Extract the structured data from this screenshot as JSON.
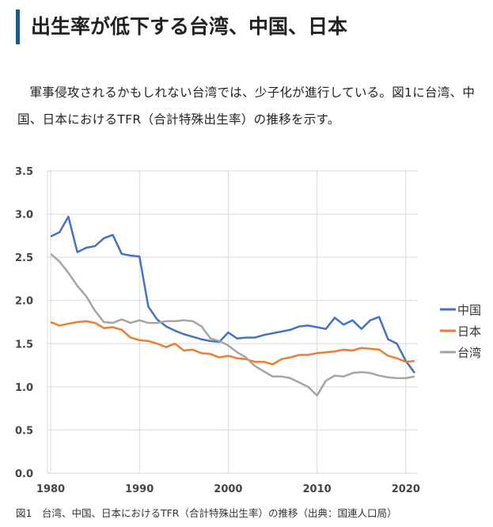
{
  "heading": "出生率が低下する台湾、中国、日本",
  "paragraph": "軍事侵攻されるかもしれない台湾では、少子化が進行している。図1に台湾、中国、日本におけるTFR（合計特殊出生率）の推移を示す。",
  "caption": "図1　台湾、中国、日本におけるTFR（合計特殊出生率）の推移（出典：国連人口局）",
  "chart_data": {
    "type": "line",
    "title": "",
    "xlabel": "",
    "ylabel": "",
    "xlim": [
      1980,
      2021
    ],
    "ylim": [
      0,
      3.5
    ],
    "grid": true,
    "legend": "right",
    "x_ticks": [
      "1980",
      "1990",
      "2000",
      "2010",
      "2020"
    ],
    "y_ticks": [
      "0.0",
      "0.5",
      "1.0",
      "1.5",
      "2.0",
      "2.5",
      "3.0",
      "3.5"
    ],
    "x_start": 1980,
    "series": [
      {
        "name": "中国",
        "color": "#4472c4",
        "values": [
          2.74,
          2.79,
          2.97,
          2.56,
          2.61,
          2.63,
          2.72,
          2.76,
          2.54,
          2.52,
          2.51,
          1.93,
          1.78,
          1.7,
          1.65,
          1.61,
          1.58,
          1.55,
          1.53,
          1.52,
          1.63,
          1.56,
          1.57,
          1.57,
          1.6,
          1.62,
          1.64,
          1.66,
          1.7,
          1.71,
          1.69,
          1.67,
          1.8,
          1.72,
          1.77,
          1.67,
          1.77,
          1.81,
          1.55,
          1.5,
          1.3,
          1.16
        ]
      },
      {
        "name": "日本",
        "color": "#ed7d31",
        "values": [
          1.75,
          1.71,
          1.73,
          1.75,
          1.76,
          1.74,
          1.68,
          1.69,
          1.66,
          1.57,
          1.54,
          1.53,
          1.5,
          1.46,
          1.5,
          1.42,
          1.43,
          1.39,
          1.38,
          1.34,
          1.36,
          1.33,
          1.32,
          1.29,
          1.29,
          1.26,
          1.32,
          1.34,
          1.37,
          1.37,
          1.39,
          1.4,
          1.41,
          1.43,
          1.42,
          1.45,
          1.44,
          1.43,
          1.36,
          1.33,
          1.29,
          1.3
        ]
      },
      {
        "name": "台湾",
        "color": "#a5a5a5",
        "values": [
          2.54,
          2.45,
          2.32,
          2.17,
          2.05,
          1.88,
          1.75,
          1.74,
          1.78,
          1.74,
          1.77,
          1.74,
          1.74,
          1.76,
          1.76,
          1.77,
          1.76,
          1.7,
          1.56,
          1.53,
          1.48,
          1.4,
          1.34,
          1.24,
          1.18,
          1.12,
          1.12,
          1.1,
          1.05,
          1.0,
          0.9,
          1.07,
          1.13,
          1.12,
          1.16,
          1.17,
          1.16,
          1.13,
          1.11,
          1.1,
          1.1,
          1.12
        ]
      }
    ]
  }
}
